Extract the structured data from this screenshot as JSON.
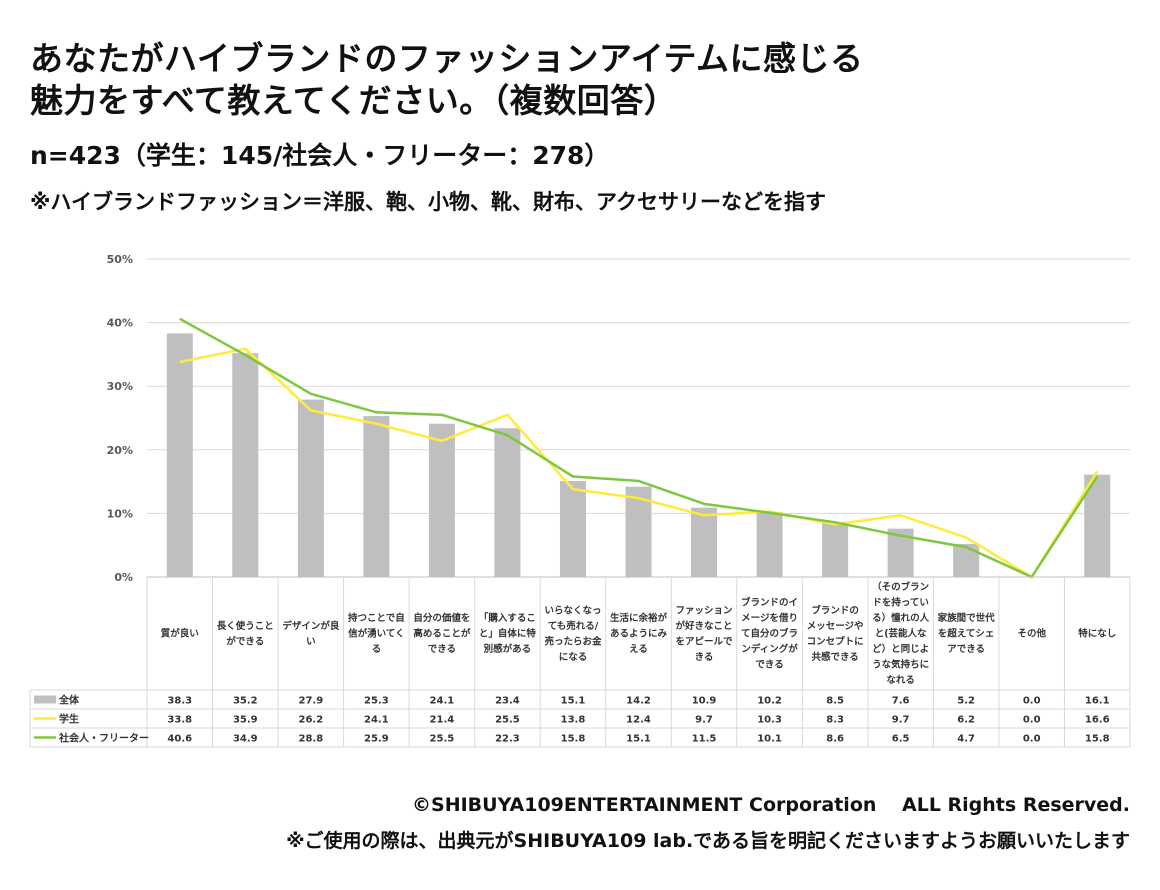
{
  "header": {
    "title_line1": "あなたがハイブランドのファッションアイテムに感じる",
    "title_line2": "魅力をすべて教えてください。（複数回答）",
    "subtitle": "n=423（学生：145/社会人・フリーター：278）",
    "note": "※ハイブランドファッション＝洋服、鞄、小物、靴、財布、アクセサリーなどを指す"
  },
  "footer": {
    "copyright": "©SHIBUYA109ENTERTAINMENT Corporation　 ALL Rights Reserved.",
    "usage_note": "※ご使用の際は、出典元がSHIBUYA109 lab.である旨を明記くださいますようお願いいたします"
  },
  "colors": {
    "bar": "#bfbfbf",
    "student": "#ffeb3b",
    "worker": "#7ec73f",
    "grid": "#d9d9d9",
    "axis_text": "#595959"
  },
  "chart_data": {
    "type": "bar",
    "ylim": [
      0,
      50
    ],
    "yticks": [
      "0%",
      "10%",
      "20%",
      "30%",
      "40%",
      "50%"
    ],
    "grid": true,
    "legend": "data-table",
    "categories": [
      [
        "質が良い"
      ],
      [
        "長く使うこと",
        "ができる"
      ],
      [
        "デザインが良",
        "い"
      ],
      [
        "持つことで自",
        "信が湧いてく",
        "る"
      ],
      [
        "自分の価値を",
        "高めることが",
        "できる"
      ],
      [
        "「購入するこ",
        "と」自体に特",
        "別感がある"
      ],
      [
        "いらなくなっ",
        "ても売れる/",
        "売ったらお金",
        "になる"
      ],
      [
        "生活に余裕が",
        "あるようにみ",
        "える"
      ],
      [
        "ファッション",
        "が好きなこと",
        "をアピールで",
        "きる"
      ],
      [
        "ブランドのイ",
        "メージを借り",
        "て自分のブラ",
        "ンディングが",
        "できる"
      ],
      [
        "ブランドの",
        "メッセージや",
        "コンセプトに",
        "共感できる"
      ],
      [
        "（そのブラン",
        "ドを持ってい",
        "る）憧れの人",
        "と(芸能人な",
        "ど）と同じよ",
        "うな気持ちに",
        "なれる"
      ],
      [
        "家族間で世代",
        "を超えてシェ",
        "アできる"
      ],
      [
        "その他"
      ],
      [
        "特になし"
      ]
    ],
    "series": [
      {
        "name": "全体",
        "kind": "bar",
        "values": [
          38.3,
          35.2,
          27.9,
          25.3,
          24.1,
          23.4,
          15.1,
          14.2,
          10.9,
          10.2,
          8.5,
          7.6,
          5.2,
          0.0,
          16.1
        ],
        "labels": [
          "38.3",
          "35.2",
          "27.9",
          "25.3",
          "24.1",
          "23.4",
          "15.1",
          "14.2",
          "10.9",
          "10.2",
          "8.5",
          "7.6",
          "5.2",
          "0.0",
          "16.1"
        ]
      },
      {
        "name": "学生",
        "kind": "line",
        "values": [
          33.8,
          35.9,
          26.2,
          24.1,
          21.4,
          25.5,
          13.8,
          12.4,
          9.7,
          10.3,
          8.3,
          9.7,
          6.2,
          0.0,
          16.6
        ],
        "labels": [
          "33.8",
          "35.9",
          "26.2",
          "24.1",
          "21.4",
          "25.5",
          "13.8",
          "12.4",
          "9.7",
          "10.3",
          "8.3",
          "9.7",
          "6.2",
          "0.0",
          "16.6"
        ]
      },
      {
        "name": "社会人・フリーター",
        "kind": "line",
        "values": [
          40.6,
          34.9,
          28.8,
          25.9,
          25.5,
          22.3,
          15.8,
          15.1,
          11.5,
          10.1,
          8.6,
          6.5,
          4.7,
          0.0,
          15.8
        ],
        "labels": [
          "40.6",
          "34.9",
          "28.8",
          "25.9",
          "25.5",
          "22.3",
          "15.8",
          "15.1",
          "11.5",
          "10.1",
          "8.6",
          "6.5",
          "4.7",
          "0.0",
          "15.8"
        ]
      }
    ]
  }
}
